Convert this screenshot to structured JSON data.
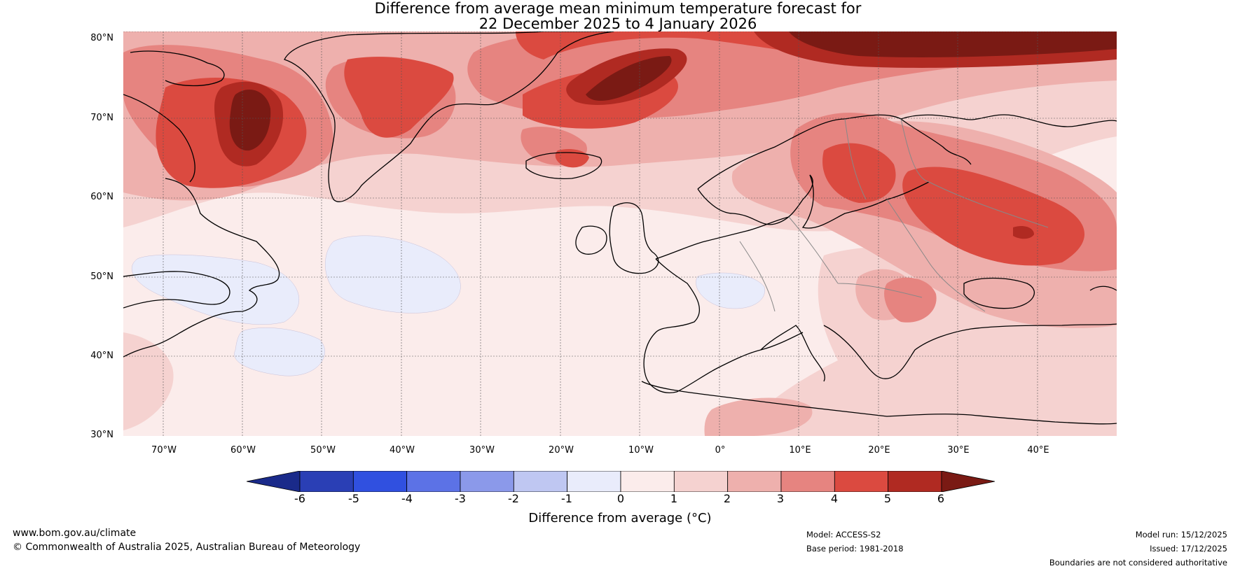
{
  "title": {
    "line1": "Difference from average mean minimum temperature forecast for",
    "line2": "22 December 2025 to 4 January 2026"
  },
  "map": {
    "lat_labels": [
      "80°N",
      "70°N",
      "60°N",
      "50°N",
      "40°N",
      "30°N"
    ],
    "lon_labels": [
      "70°W",
      "60°W",
      "50°W",
      "40°W",
      "30°W",
      "20°W",
      "10°W",
      "0°",
      "10°E",
      "20°E",
      "30°E",
      "40°E"
    ],
    "extent": {
      "lon_min": -75,
      "lon_max": 50,
      "lat_min": 30,
      "lat_max": 81
    }
  },
  "colorbar": {
    "ticks": [
      "-6",
      "-5",
      "-4",
      "-3",
      "-2",
      "-1",
      "0",
      "1",
      "2",
      "3",
      "4",
      "5",
      "6"
    ],
    "label": "Difference from average (°C)",
    "colors": [
      "#1a2a8a",
      "#2a3fb5",
      "#3050e0",
      "#5c72e6",
      "#8b99ea",
      "#bfc7f2",
      "#e9ecfb",
      "#fbeceb",
      "#f5d2d0",
      "#eeb0ad",
      "#e68480",
      "#db4a40",
      "#b02a22",
      "#7a1a14"
    ]
  },
  "footer": {
    "website": "www.bom.gov.au/climate",
    "copyright": "© Commonwealth of Australia 2025, Australian Bureau of Meteorology",
    "model": "Model: ACCESS-S2",
    "base_period": "Base period: 1981-2018",
    "model_run": "Model run: 15/12/2025",
    "issued": "Issued: 17/12/2025",
    "disclaimer": "Boundaries are not considered authoritative"
  }
}
